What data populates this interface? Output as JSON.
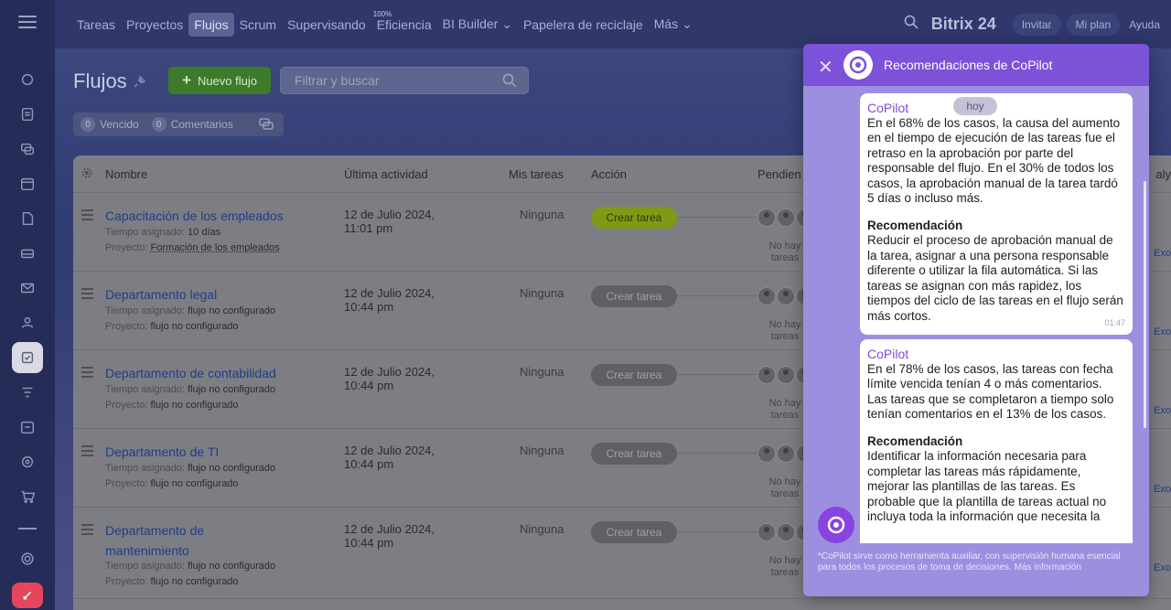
{
  "topnav": {
    "items": [
      "Tareas",
      "Proyectos",
      "Flujos",
      "Scrum",
      "Supervisando",
      "Eficiencia",
      "BI Builder",
      "Papelera de reciclaje",
      "Más"
    ],
    "efficiency_badge": "100%",
    "brand": "Bitrix 24",
    "invite": "Invitar",
    "my_plan": "Mi plan",
    "help": "Ayuda"
  },
  "page": {
    "title": "Flujos",
    "new_flow": "Nuevo flujo",
    "filter_placeholder": "Filtrar y buscar",
    "counters": [
      {
        "count": "0",
        "label": "Vencido"
      },
      {
        "count": "0",
        "label": "Comentarios"
      }
    ]
  },
  "table": {
    "headers": {
      "name": "Nombre",
      "last_activity": "Última actividad",
      "my_tasks": "Mis tareas",
      "action": "Acción",
      "pending": "Pendien",
      "analysis": "aly"
    },
    "rows": [
      {
        "name": "Capacitación de los empleados",
        "time_label": "Tiempo asignado:",
        "time": "10 días",
        "project_label": "Proyecto:",
        "project": "Formación de los empleados",
        "activity": "12 de Julio 2024,",
        "activity_time": "11:01 pm",
        "mine": "Ninguna",
        "action": "Crear tarea",
        "pending": "No hay tareas",
        "exo": "Exo"
      },
      {
        "name": "Departamento legal",
        "time_label": "Tiempo asignado:",
        "time": "flujo no configurado",
        "project_label": "Proyecto:",
        "project": "flujo no configurado",
        "activity": "12 de Julio 2024,",
        "activity_time": "10:44 pm",
        "mine": "Ninguna",
        "action": "Crear tarea",
        "pending": "No hay tareas",
        "exo": "Exo"
      },
      {
        "name": "Departamento de contabilidad",
        "time_label": "Tiempo asignado:",
        "time": "flujo no configurado",
        "project_label": "Proyecto:",
        "project": "flujo no configurado",
        "activity": "12 de Julio 2024,",
        "activity_time": "10:44 pm",
        "mine": "Ninguna",
        "action": "Crear tarea",
        "pending": "No hay tareas",
        "exo": "Exo"
      },
      {
        "name": "Departamento de TI",
        "time_label": "Tiempo asignado:",
        "time": "flujo no configurado",
        "project_label": "Proyecto:",
        "project": "flujo no configurado",
        "activity": "12 de Julio 2024,",
        "activity_time": "10:44 pm",
        "mine": "Ninguna",
        "action": "Crear tarea",
        "pending": "No hay tareas",
        "exo": "Exo"
      },
      {
        "name": "Departamento de mantenimiento",
        "time_label": "Tiempo asignado:",
        "time": "flujo no configurado",
        "project_label": "Proyecto:",
        "project": "flujo no configurado",
        "activity": "12 de Julio 2024,",
        "activity_time": "10:44 pm",
        "mine": "Ninguna",
        "action": "Crear tarea",
        "pending": "No hay tareas",
        "exo": "Exo"
      }
    ]
  },
  "copilot": {
    "title": "Recomendaciones de CoPilot",
    "date_badge": "hoy",
    "messages": [
      {
        "author": "CoPilot",
        "text": "En el 68% de los casos, la causa del aumento en el tiempo de ejecución de las tareas fue el retraso en la aprobación por parte del responsable del flujo. En el 30% de todos los casos, la aprobación manual de la tarea tardó 5 días o incluso más.",
        "rec_title": "Recomendación",
        "rec_text": "Reducir el proceso de aprobación manual de la tarea, asignar a una persona responsable diferente o utilizar la fila automática. Si las tareas se asignan con más rapidez, los tiempos del ciclo de las tareas en el flujo serán más cortos.",
        "time": "01:47"
      },
      {
        "author": "CoPilot",
        "text": "En el 78% de los casos, las tareas con fecha límite vencida tenían 4 o más comentarios. Las tareas que se completaron a tiempo solo tenían comentarios en el 13% de los casos.",
        "rec_title": "Recomendación",
        "rec_text": "Identificar la información necesaria para completar las tareas más rápidamente, mejorar las plantillas de las tareas. Es probable que la plantilla de tareas actual no incluya toda la información que necesita la"
      }
    ],
    "footnote": "*CoPilot sirve como herramienta auxiliar, con supervisión humana esencial para todos los procesos de toma de decisiones. Más información"
  },
  "colors": {
    "accent_purple": "#7b52d8",
    "create_button_active": "#7f9a14",
    "new_flow_green": "#3d7a2a"
  }
}
